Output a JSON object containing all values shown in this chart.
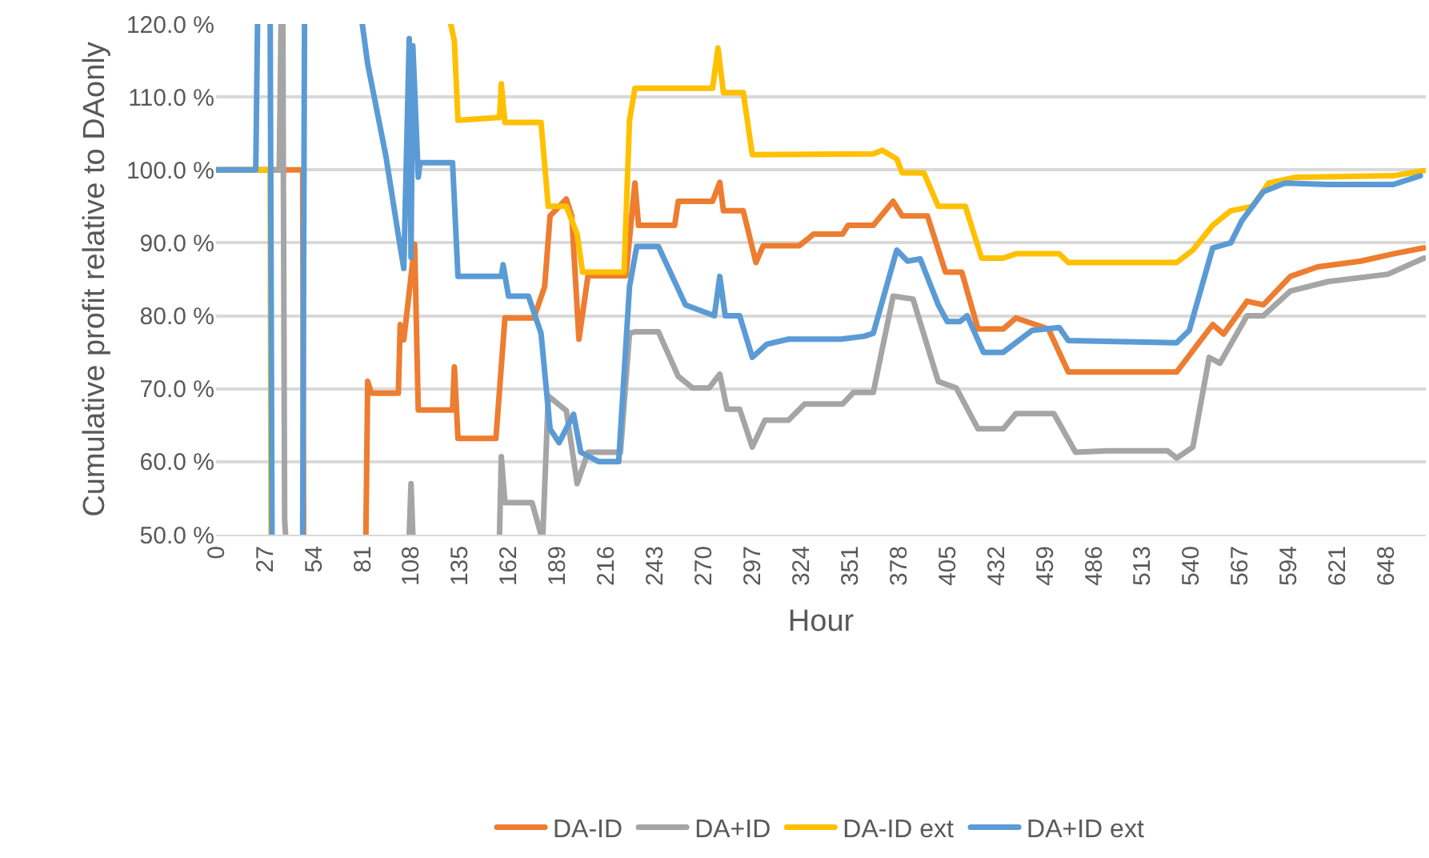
{
  "chart_data": {
    "type": "line",
    "xlabel": "Hour",
    "ylabel": "Cumulative profit relative to DAonly",
    "xlim": [
      0,
      670
    ],
    "xticks": [
      0,
      27,
      54,
      81,
      108,
      135,
      162,
      189,
      216,
      243,
      270,
      297,
      324,
      351,
      378,
      405,
      432,
      459,
      486,
      513,
      540,
      567,
      594,
      621,
      648
    ],
    "ylim": [
      50,
      120
    ],
    "yticks": [
      {
        "value": 50,
        "label": "50.0 %"
      },
      {
        "value": 60,
        "label": "60.0 %"
      },
      {
        "value": 70,
        "label": "70.0 %"
      },
      {
        "value": 80,
        "label": "80.0 %"
      },
      {
        "value": 90,
        "label": "90.0 %"
      },
      {
        "value": 100,
        "label": "100.0 %"
      },
      {
        "value": 110,
        "label": "110.0 %"
      },
      {
        "value": 120,
        "label": "120.0 %"
      }
    ],
    "grid": "y",
    "legend": "bottom",
    "marker": "none",
    "line_style": "solid",
    "series": [
      {
        "name": "DA-ID",
        "color": "#ed7d31",
        "x": [
          0,
          48,
          48.5,
          49,
          83,
          84,
          86,
          101,
          102,
          104,
          110,
          112,
          131,
          132,
          134,
          155,
          160,
          176,
          182,
          185,
          194,
          197,
          201,
          206,
          227,
          232,
          234,
          254,
          256,
          275,
          279,
          281,
          292,
          299,
          303,
          323,
          331,
          347,
          350,
          364,
          375,
          380,
          394,
          404,
          413,
          422,
          436,
          443,
          461,
          472,
          532,
          544,
          552,
          558,
          571,
          580,
          595,
          610,
          634,
          652,
          669
        ],
        "values": [
          100,
          100,
          50,
          null,
          50,
          71,
          69.4,
          69.4,
          78.8,
          76.7,
          89.8,
          67.1,
          67.1,
          73,
          63.2,
          63.2,
          79.7,
          79.7,
          84,
          93.7,
          96,
          93.7,
          76.8,
          85.5,
          85.5,
          98.2,
          92.4,
          92.4,
          95.7,
          95.7,
          98.3,
          94.4,
          94.4,
          87.3,
          89.6,
          89.6,
          91.2,
          91.2,
          92.4,
          92.4,
          95.7,
          93.7,
          93.7,
          86,
          86,
          78.2,
          78.2,
          79.7,
          78.2,
          72.3,
          72.3,
          76.2,
          78.8,
          77.5,
          82,
          81.5,
          85.4,
          86.7,
          87.5,
          88.5,
          89.3
        ]
      },
      {
        "name": "DA+ID",
        "color": "#a5a5a5",
        "x": [
          0,
          35,
          36,
          36.5,
          37,
          38,
          38.5,
          39,
          107,
          108,
          109,
          110,
          157,
          158,
          160,
          175,
          180,
          181,
          184,
          194,
          200,
          206,
          224,
          229,
          232,
          245,
          256,
          264,
          273,
          279,
          283,
          290,
          297,
          304,
          317,
          326,
          347,
          353,
          364,
          375,
          386,
          400,
          410,
          422,
          436,
          443,
          464,
          476,
          494,
          527,
          532,
          541,
          550,
          556,
          571,
          580,
          595,
          616,
          649,
          669
        ],
        "values": [
          100,
          100,
          120,
          null,
          120,
          52,
          50,
          null,
          50,
          57,
          50,
          null,
          50,
          60.7,
          54.4,
          54.4,
          50,
          50,
          69,
          67,
          57,
          61.3,
          61.3,
          77.6,
          77.8,
          77.8,
          71.7,
          70.1,
          70.1,
          72,
          67.2,
          67.2,
          62,
          65.7,
          65.7,
          67.9,
          67.9,
          69.5,
          69.5,
          82.7,
          82.3,
          71,
          70.1,
          64.5,
          64.5,
          66.6,
          66.6,
          61.3,
          61.5,
          61.5,
          60.5,
          62,
          74.3,
          73.5,
          80,
          80,
          83.4,
          84.7,
          85.7,
          87.9
        ]
      },
      {
        "name": "DA-ID ext",
        "color": "#ffc000",
        "x": [
          0,
          30,
          30.5,
          31,
          130,
          132,
          134,
          157,
          158,
          160,
          180,
          184,
          194,
          200,
          203,
          226,
          229,
          232,
          275,
          278,
          281,
          292,
          297,
          364,
          369,
          377,
          380,
          392,
          400,
          415,
          424,
          436,
          443,
          467,
          472,
          532,
          541,
          552,
          562,
          574,
          583,
          598,
          652,
          669
        ],
        "values": [
          100,
          100,
          50,
          null,
          120,
          117.7,
          106.8,
          107.2,
          111.8,
          106.5,
          106.5,
          95,
          95,
          91.2,
          86,
          86,
          106.8,
          111.2,
          111.2,
          116.7,
          110.6,
          110.6,
          102.1,
          102.2,
          102.7,
          101.5,
          99.6,
          99.6,
          95,
          95,
          87.9,
          87.9,
          88.5,
          88.5,
          87.3,
          87.3,
          89,
          92.4,
          94.4,
          95,
          98.2,
          99,
          99.2,
          99.9
        ]
      },
      {
        "name": "DA+ID ext",
        "color": "#5b9bd5",
        "x": [
          0,
          22,
          23,
          26,
          30,
          31,
          32,
          48,
          49,
          60,
          81,
          84,
          94,
          101,
          104,
          107,
          108,
          109,
          112,
          113,
          131,
          134,
          158,
          159,
          162,
          173,
          180,
          185,
          190,
          198,
          202,
          212,
          223,
          229,
          233,
          245,
          260,
          276,
          279,
          282,
          290,
          297,
          305,
          317,
          346,
          359,
          364,
          377,
          383,
          390,
          400,
          405,
          412,
          416,
          425,
          436,
          452,
          467,
          472,
          532,
          539,
          552,
          562,
          568,
          580,
          592,
          616,
          652,
          667
        ],
        "values": [
          100,
          100,
          120,
          null,
          120,
          50,
          null,
          50,
          120,
          null,
          120,
          114.5,
          102,
          91,
          86.5,
          118,
          88,
          117,
          99,
          101,
          101,
          85.4,
          85.4,
          87,
          82.7,
          82.7,
          77.6,
          64.5,
          62.6,
          66.5,
          61.3,
          60,
          60,
          84,
          89.5,
          89.5,
          81.5,
          80,
          85.4,
          80,
          80,
          74.3,
          76.1,
          76.8,
          76.8,
          77.2,
          77.6,
          89,
          87.5,
          87.8,
          81.5,
          79.2,
          79.2,
          80,
          75,
          75,
          78,
          78.4,
          76.6,
          76.3,
          78,
          89.3,
          90,
          93,
          97,
          98.2,
          98,
          98,
          99.2
        ]
      }
    ]
  }
}
